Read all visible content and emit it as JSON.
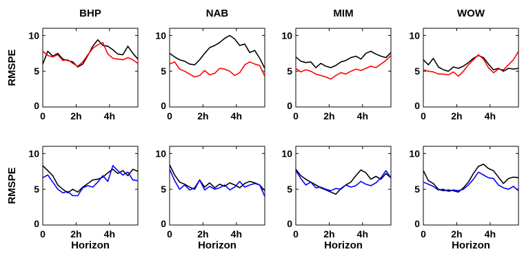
{
  "figure": {
    "row_ylabel": "RMSPE",
    "xlabel": "Horizon"
  },
  "chart_data": [
    {
      "type": "line",
      "title": "BHP",
      "ylim": [
        0,
        11
      ],
      "xlim": [
        0,
        5.7
      ],
      "xticks": [
        0,
        2,
        4
      ],
      "xticklabels": [
        "0",
        "2h",
        "4h"
      ],
      "yticks": [
        0,
        5,
        10
      ],
      "yticklabels": [
        "0",
        "5",
        "10"
      ],
      "x": [
        0,
        0.3,
        0.6,
        0.9,
        1.2,
        1.5,
        1.8,
        2.1,
        2.4,
        2.7,
        3.0,
        3.3,
        3.6,
        3.9,
        4.2,
        4.5,
        4.8,
        5.1,
        5.4,
        5.7
      ],
      "series": [
        {
          "color": "#000000",
          "values": [
            6.0,
            7.8,
            7.1,
            7.5,
            6.7,
            6.5,
            6.3,
            5.6,
            6.0,
            7.2,
            8.5,
            9.4,
            8.6,
            8.5,
            8.0,
            7.4,
            7.3,
            8.5,
            7.5,
            6.7
          ]
        },
        {
          "color": "#ff0000",
          "values": [
            7.8,
            7.2,
            7.0,
            7.3,
            6.5,
            6.6,
            6.1,
            5.7,
            6.3,
            7.3,
            8.2,
            8.7,
            9.0,
            7.4,
            6.8,
            6.7,
            6.6,
            6.9,
            6.6,
            6.1
          ]
        }
      ]
    },
    {
      "type": "line",
      "title": "NAB",
      "ylim": [
        0,
        11
      ],
      "xlim": [
        0,
        5.7
      ],
      "xticks": [
        0,
        2,
        4
      ],
      "xticklabels": [
        "0",
        "2h",
        "4h"
      ],
      "yticks": [
        0,
        5,
        10
      ],
      "yticklabels": [
        "0",
        "5",
        "10"
      ],
      "x": [
        0,
        0.3,
        0.6,
        0.9,
        1.2,
        1.5,
        1.8,
        2.1,
        2.4,
        2.7,
        3.0,
        3.3,
        3.6,
        3.9,
        4.2,
        4.5,
        4.8,
        5.1,
        5.4,
        5.7
      ],
      "series": [
        {
          "color": "#000000",
          "values": [
            7.5,
            7.0,
            6.6,
            6.4,
            6.0,
            5.9,
            6.6,
            7.5,
            8.3,
            8.6,
            9.0,
            9.6,
            10.0,
            9.5,
            8.6,
            8.8,
            7.6,
            7.9,
            6.8,
            5.4
          ]
        },
        {
          "color": "#ff0000",
          "values": [
            6.0,
            6.3,
            5.3,
            5.0,
            4.6,
            4.2,
            4.4,
            5.1,
            4.5,
            4.7,
            5.4,
            5.3,
            5.0,
            4.4,
            4.8,
            5.9,
            6.3,
            6.0,
            5.8,
            4.3
          ]
        }
      ]
    },
    {
      "type": "line",
      "title": "MIM",
      "ylim": [
        0,
        11
      ],
      "xlim": [
        0,
        5.7
      ],
      "xticks": [
        0,
        2,
        4
      ],
      "xticklabels": [
        "0",
        "2h",
        "4h"
      ],
      "yticks": [
        0,
        5,
        10
      ],
      "yticklabels": [
        "0",
        "5",
        "10"
      ],
      "x": [
        0,
        0.3,
        0.6,
        0.9,
        1.2,
        1.5,
        1.8,
        2.1,
        2.4,
        2.7,
        3.0,
        3.3,
        3.6,
        3.9,
        4.2,
        4.5,
        4.8,
        5.1,
        5.4,
        5.7
      ],
      "series": [
        {
          "color": "#000000",
          "values": [
            7.0,
            6.4,
            6.2,
            6.3,
            5.5,
            6.1,
            5.7,
            5.5,
            5.8,
            6.3,
            6.5,
            6.9,
            7.1,
            6.7,
            7.5,
            7.8,
            7.4,
            7.1,
            6.9,
            7.6
          ]
        },
        {
          "color": "#ff0000",
          "values": [
            5.4,
            4.9,
            5.2,
            5.0,
            4.6,
            4.4,
            4.2,
            3.9,
            4.4,
            4.8,
            4.6,
            5.0,
            5.3,
            5.1,
            5.4,
            5.7,
            5.5,
            6.0,
            6.5,
            7.2
          ]
        }
      ]
    },
    {
      "type": "line",
      "title": "WOW",
      "ylim": [
        0,
        11
      ],
      "xlim": [
        0,
        5.7
      ],
      "xticks": [
        0,
        2,
        4
      ],
      "xticklabels": [
        "0",
        "2h",
        "4h"
      ],
      "yticks": [
        0,
        5,
        10
      ],
      "yticklabels": [
        "0",
        "5",
        "10"
      ],
      "x": [
        0,
        0.3,
        0.6,
        0.9,
        1.2,
        1.5,
        1.8,
        2.1,
        2.4,
        2.7,
        3.0,
        3.3,
        3.6,
        3.9,
        4.2,
        4.5,
        4.8,
        5.1,
        5.4,
        5.7
      ],
      "series": [
        {
          "color": "#000000",
          "values": [
            6.6,
            5.9,
            6.8,
            5.6,
            5.2,
            5.0,
            5.6,
            5.4,
            5.7,
            6.2,
            6.8,
            7.2,
            6.9,
            6.0,
            5.2,
            5.4,
            5.0,
            5.4,
            5.3,
            5.4
          ]
        },
        {
          "color": "#ff0000",
          "values": [
            5.2,
            5.0,
            4.9,
            4.6,
            4.6,
            4.5,
            4.9,
            4.3,
            5.0,
            5.9,
            6.6,
            7.3,
            6.7,
            5.5,
            4.8,
            5.3,
            5.2,
            5.9,
            6.6,
            7.8
          ]
        }
      ]
    },
    {
      "type": "line",
      "title": "",
      "ylim": [
        0,
        11
      ],
      "xlim": [
        0,
        5.7
      ],
      "xticks": [
        0,
        2,
        4
      ],
      "xticklabels": [
        "0",
        "2h",
        "4h"
      ],
      "yticks": [
        0,
        5,
        10
      ],
      "yticklabels": [
        "0",
        "5",
        "10"
      ],
      "x": [
        0,
        0.3,
        0.6,
        0.9,
        1.2,
        1.5,
        1.8,
        2.1,
        2.4,
        2.7,
        3.0,
        3.3,
        3.6,
        3.9,
        4.2,
        4.5,
        4.8,
        5.1,
        5.4,
        5.7
      ],
      "series": [
        {
          "color": "#000000",
          "values": [
            8.3,
            7.6,
            6.9,
            5.6,
            5.0,
            4.5,
            5.0,
            4.6,
            5.3,
            5.8,
            6.3,
            6.4,
            6.7,
            7.3,
            7.8,
            7.2,
            7.6,
            6.9,
            7.8,
            7.5
          ]
        },
        {
          "color": "#0000ff",
          "values": [
            6.6,
            7.0,
            6.0,
            5.0,
            4.5,
            4.7,
            4.1,
            4.1,
            5.2,
            5.5,
            5.3,
            6.0,
            6.9,
            6.1,
            8.3,
            7.6,
            7.0,
            7.4,
            6.3,
            6.2
          ]
        }
      ]
    },
    {
      "type": "line",
      "title": "",
      "ylim": [
        0,
        11
      ],
      "xlim": [
        0,
        5.7
      ],
      "xticks": [
        0,
        2,
        4
      ],
      "xticklabels": [
        "0",
        "2h",
        "4h"
      ],
      "yticks": [
        0,
        5,
        10
      ],
      "yticklabels": [
        "0",
        "5",
        "10"
      ],
      "x": [
        0,
        0.3,
        0.6,
        0.9,
        1.2,
        1.5,
        1.8,
        2.1,
        2.4,
        2.7,
        3.0,
        3.3,
        3.6,
        3.9,
        4.2,
        4.5,
        4.8,
        5.1,
        5.4,
        5.7
      ],
      "series": [
        {
          "color": "#000000",
          "values": [
            8.4,
            7.0,
            6.0,
            5.7,
            5.3,
            5.0,
            6.3,
            5.3,
            5.9,
            5.2,
            5.7,
            5.4,
            5.9,
            5.6,
            5.2,
            5.8,
            6.1,
            5.9,
            5.6,
            4.8
          ]
        },
        {
          "color": "#0000ff",
          "values": [
            7.8,
            6.2,
            5.0,
            5.6,
            4.9,
            5.2,
            6.3,
            4.9,
            5.4,
            5.0,
            5.2,
            5.6,
            4.9,
            5.3,
            6.1,
            5.3,
            5.6,
            5.8,
            5.6,
            4.0
          ]
        }
      ]
    },
    {
      "type": "line",
      "title": "",
      "ylim": [
        0,
        11
      ],
      "xlim": [
        0,
        5.7
      ],
      "xticks": [
        0,
        2,
        4
      ],
      "xticklabels": [
        "0",
        "2h",
        "4h"
      ],
      "yticks": [
        0,
        5,
        10
      ],
      "yticklabels": [
        "0",
        "5",
        "10"
      ],
      "x": [
        0,
        0.3,
        0.6,
        0.9,
        1.2,
        1.5,
        1.8,
        2.1,
        2.4,
        2.7,
        3.0,
        3.3,
        3.6,
        3.9,
        4.2,
        4.5,
        4.8,
        5.1,
        5.4,
        5.7
      ],
      "series": [
        {
          "color": "#000000",
          "values": [
            7.8,
            6.9,
            6.4,
            6.0,
            5.6,
            5.2,
            4.9,
            4.6,
            4.3,
            5.1,
            5.6,
            6.0,
            6.9,
            7.7,
            7.3,
            6.4,
            6.8,
            6.4,
            7.2,
            6.6
          ]
        },
        {
          "color": "#0000ff",
          "values": [
            7.6,
            6.5,
            5.6,
            6.0,
            5.2,
            5.3,
            5.0,
            4.8,
            5.1,
            5.0,
            5.6,
            5.3,
            5.5,
            6.1,
            5.7,
            5.5,
            5.9,
            6.6,
            7.6,
            6.6
          ]
        }
      ]
    },
    {
      "type": "line",
      "title": "",
      "ylim": [
        0,
        11
      ],
      "xlim": [
        0,
        5.7
      ],
      "xticks": [
        0,
        2,
        4
      ],
      "xticklabels": [
        "0",
        "2h",
        "4h"
      ],
      "yticks": [
        0,
        5,
        10
      ],
      "yticklabels": [
        "0",
        "5",
        "10"
      ],
      "x": [
        0,
        0.3,
        0.6,
        0.9,
        1.2,
        1.5,
        1.8,
        2.1,
        2.4,
        2.7,
        3.0,
        3.3,
        3.6,
        3.9,
        4.2,
        4.5,
        4.8,
        5.1,
        5.4,
        5.7
      ],
      "series": [
        {
          "color": "#000000",
          "values": [
            7.6,
            6.2,
            5.8,
            5.0,
            4.8,
            4.9,
            4.8,
            4.6,
            5.2,
            6.0,
            7.2,
            8.2,
            8.5,
            7.9,
            7.6,
            6.7,
            5.8,
            6.5,
            6.7,
            6.6
          ]
        },
        {
          "color": "#0000ff",
          "values": [
            6.0,
            5.7,
            5.4,
            4.9,
            5.0,
            4.7,
            4.9,
            4.8,
            5.0,
            5.6,
            6.4,
            7.4,
            7.0,
            6.6,
            6.5,
            5.6,
            5.2,
            5.0,
            5.4,
            4.8
          ]
        }
      ]
    }
  ]
}
